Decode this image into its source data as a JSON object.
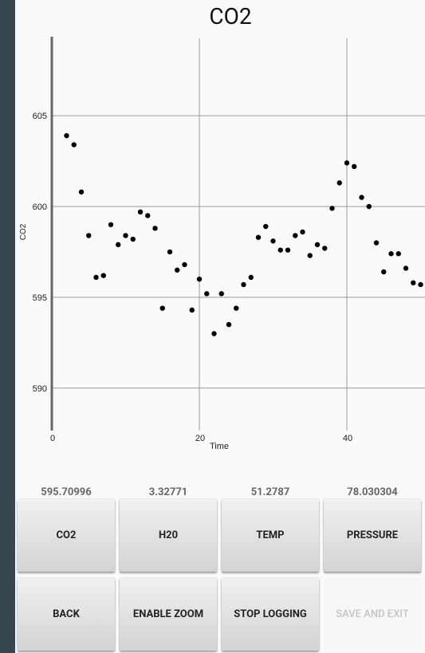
{
  "chart_title": "CO2",
  "readouts": [
    "595.70996",
    "3.32771",
    "51.2787",
    "78.030304"
  ],
  "buttons_row1": [
    "CO2",
    "H20",
    "TEMP",
    "PRESSURE"
  ],
  "buttons_row2": [
    "BACK",
    "ENABLE ZOOM",
    "STOP LOGGING",
    "SAVE AND EXIT"
  ],
  "chart_data": {
    "type": "scatter",
    "title": "CO2",
    "xlabel": "Time",
    "ylabel": "CO2",
    "xlim": [
      0,
      51
    ],
    "ylim": [
      587.5,
      609
    ],
    "x_ticks": [
      "0",
      "20",
      "40"
    ],
    "y_ticks": [
      "590",
      "595",
      "600",
      "605"
    ],
    "grid": true,
    "points": [
      {
        "x": 2,
        "y": 603.9
      },
      {
        "x": 3,
        "y": 603.4
      },
      {
        "x": 4,
        "y": 600.8
      },
      {
        "x": 5,
        "y": 598.4
      },
      {
        "x": 6,
        "y": 596.1
      },
      {
        "x": 7,
        "y": 596.2
      },
      {
        "x": 8,
        "y": 599.0
      },
      {
        "x": 9,
        "y": 597.9
      },
      {
        "x": 10,
        "y": 598.4
      },
      {
        "x": 11,
        "y": 598.2
      },
      {
        "x": 12,
        "y": 599.7
      },
      {
        "x": 13,
        "y": 599.5
      },
      {
        "x": 14,
        "y": 598.8
      },
      {
        "x": 15,
        "y": 594.4
      },
      {
        "x": 16,
        "y": 597.5
      },
      {
        "x": 17,
        "y": 596.5
      },
      {
        "x": 18,
        "y": 596.8
      },
      {
        "x": 19,
        "y": 594.3
      },
      {
        "x": 20,
        "y": 596.0
      },
      {
        "x": 21,
        "y": 595.2
      },
      {
        "x": 22,
        "y": 593.0
      },
      {
        "x": 23,
        "y": 595.2
      },
      {
        "x": 24,
        "y": 593.5
      },
      {
        "x": 25,
        "y": 594.4
      },
      {
        "x": 26,
        "y": 595.7
      },
      {
        "x": 27,
        "y": 596.1
      },
      {
        "x": 28,
        "y": 598.3
      },
      {
        "x": 29,
        "y": 598.9
      },
      {
        "x": 30,
        "y": 598.1
      },
      {
        "x": 31,
        "y": 597.6
      },
      {
        "x": 32,
        "y": 597.6
      },
      {
        "x": 33,
        "y": 598.4
      },
      {
        "x": 34,
        "y": 598.6
      },
      {
        "x": 35,
        "y": 597.3
      },
      {
        "x": 36,
        "y": 597.9
      },
      {
        "x": 37,
        "y": 597.7
      },
      {
        "x": 38,
        "y": 599.9
      },
      {
        "x": 39,
        "y": 601.3
      },
      {
        "x": 40,
        "y": 602.4
      },
      {
        "x": 41,
        "y": 602.2
      },
      {
        "x": 42,
        "y": 600.5
      },
      {
        "x": 43,
        "y": 600.0
      },
      {
        "x": 44,
        "y": 598.0
      },
      {
        "x": 45,
        "y": 596.4
      },
      {
        "x": 46,
        "y": 597.4
      },
      {
        "x": 47,
        "y": 597.4
      },
      {
        "x": 48,
        "y": 596.6
      },
      {
        "x": 49,
        "y": 595.8
      },
      {
        "x": 50,
        "y": 595.7
      }
    ]
  }
}
